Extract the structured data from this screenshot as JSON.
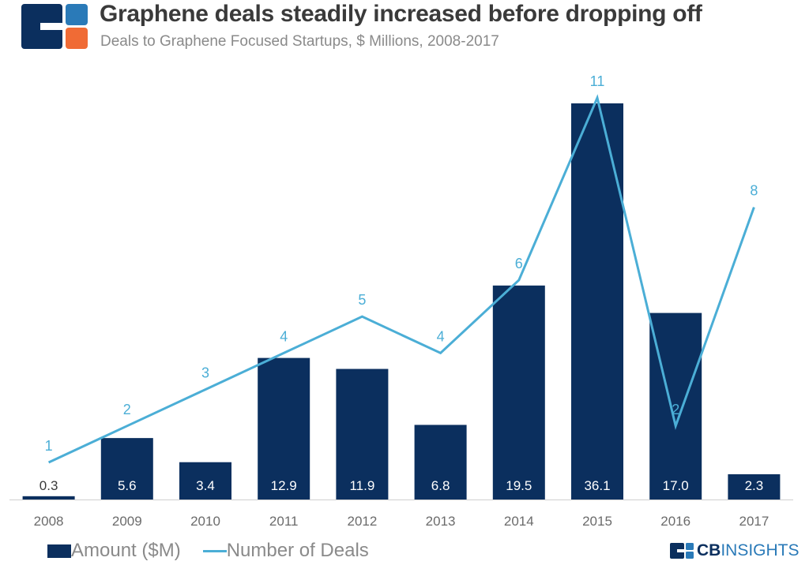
{
  "header": {
    "title": "Graphene deals steadily increased before dropping off",
    "subtitle": "Deals to Graphene Focused Startups, $ Millions, 2008-2017"
  },
  "colors": {
    "bar": "#0b2f5e",
    "line": "#4baed6",
    "logo_blue": "#0b2f5e",
    "logo_light": "#2a7ab8",
    "logo_orange": "#f06b35"
  },
  "legend": {
    "bar_label": "Amount ($M)",
    "line_label": "Number of Deals"
  },
  "brand": {
    "prefix": "CB",
    "suffix": "INSIGHTS"
  },
  "chart_data": {
    "type": "bar",
    "categories": [
      "2008",
      "2009",
      "2010",
      "2011",
      "2012",
      "2013",
      "2014",
      "2015",
      "2016",
      "2017"
    ],
    "series": [
      {
        "name": "Amount ($M)",
        "type": "bar",
        "values": [
          0.3,
          5.6,
          3.4,
          12.9,
          11.9,
          6.8,
          19.5,
          36.1,
          17.0,
          2.3
        ],
        "labels": [
          "0.3",
          "5.6",
          "3.4",
          "12.9",
          "11.9",
          "6.8",
          "19.5",
          "36.1",
          "17.0",
          "2.3"
        ]
      },
      {
        "name": "Number of Deals",
        "type": "line",
        "values": [
          1,
          2,
          3,
          4,
          5,
          4,
          6,
          11,
          2,
          8
        ]
      }
    ],
    "title": "Graphene deals steadily increased before dropping off",
    "subtitle": "Deals to Graphene Focused Startups, $ Millions, 2008-2017",
    "legend_position": "bottom-left",
    "grid": false
  }
}
